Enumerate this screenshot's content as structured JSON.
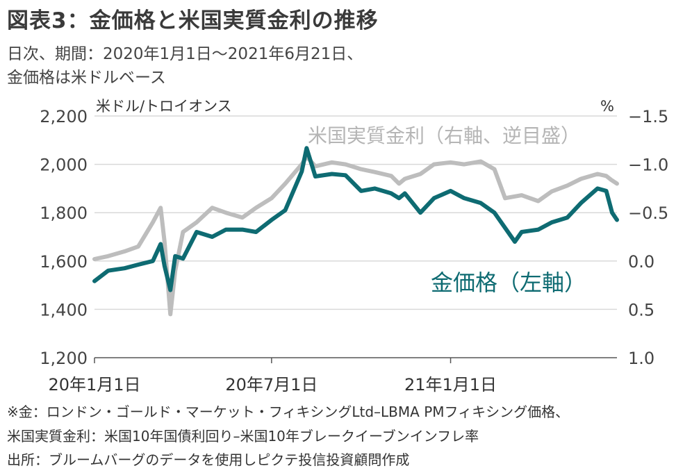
{
  "title": "図表3：金価格と米国実質金利の推移",
  "subtitle_line1": "日次、期間：2020年1月1日～2021年6月21日、",
  "subtitle_line2": "金価格は米ドルベース",
  "notes": [
    "※金：ロンドン・ゴールド・マーケット・フィキシングLtd–LBMA PMフィキシング価格、",
    "米国実質金利：米国10年国債利回り–米国10年ブレークイーブンインフレ率",
    "出所：ブルームバーグのデータを使用しピクテ投信投資顧問作成"
  ],
  "chart_data": {
    "type": "line",
    "x_tick_labels": [
      "20年1月1日",
      "20年7月1日",
      "21年1月1日"
    ],
    "x_tick_dates": [
      "2020-01-01",
      "2020-07-01",
      "2021-01-01"
    ],
    "x_range": [
      "2020-01-01",
      "2021-06-21"
    ],
    "left_axis": {
      "unit": "米ドル/トロイオンス",
      "ticks": [
        "2,200",
        "2,000",
        "1,800",
        "1,600",
        "1,400",
        "1,200"
      ],
      "ylim": [
        1200,
        2200
      ]
    },
    "right_axis": {
      "unit": "%",
      "ticks": [
        "-1.5",
        "-1.0",
        "-0.5",
        "0.0",
        "0.5",
        "1.0"
      ],
      "ylim": [
        1.0,
        -1.5
      ],
      "inverted": true
    },
    "grid": true,
    "series": [
      {
        "name": "米国実質金利（右軸、逆目盛）",
        "axis": "right",
        "color": "#bdbdbd",
        "x": [
          "2020-01-01",
          "2020-01-15",
          "2020-02-01",
          "2020-02-15",
          "2020-03-01",
          "2020-03-09",
          "2020-03-13",
          "2020-03-19",
          "2020-03-24",
          "2020-04-01",
          "2020-04-15",
          "2020-05-01",
          "2020-05-15",
          "2020-06-01",
          "2020-06-15",
          "2020-07-01",
          "2020-07-15",
          "2020-08-01",
          "2020-08-06",
          "2020-08-15",
          "2020-09-01",
          "2020-09-15",
          "2020-10-01",
          "2020-10-15",
          "2020-11-01",
          "2020-11-09",
          "2020-11-15",
          "2020-12-01",
          "2020-12-15",
          "2021-01-01",
          "2021-01-15",
          "2021-02-01",
          "2021-02-15",
          "2021-02-26",
          "2021-03-15",
          "2021-04-01",
          "2021-04-15",
          "2021-05-01",
          "2021-05-15",
          "2021-06-01",
          "2021-06-10",
          "2021-06-15",
          "2021-06-21"
        ],
        "values": [
          -0.02,
          -0.05,
          -0.1,
          -0.15,
          -0.4,
          -0.55,
          -0.2,
          0.55,
          0.1,
          -0.3,
          -0.4,
          -0.55,
          -0.5,
          -0.45,
          -0.55,
          -0.65,
          -0.8,
          -1.0,
          -1.08,
          -0.98,
          -1.02,
          -1.0,
          -0.95,
          -0.92,
          -0.88,
          -0.8,
          -0.85,
          -0.9,
          -1.0,
          -1.02,
          -1.0,
          -1.03,
          -0.95,
          -0.65,
          -0.68,
          -0.62,
          -0.72,
          -0.78,
          -0.85,
          -0.9,
          -0.88,
          -0.84,
          -0.8
        ]
      },
      {
        "name": "金価格（左軸）",
        "axis": "left",
        "color": "#0e6b72",
        "x": [
          "2020-01-01",
          "2020-01-15",
          "2020-02-01",
          "2020-02-15",
          "2020-03-01",
          "2020-03-09",
          "2020-03-13",
          "2020-03-19",
          "2020-03-24",
          "2020-04-01",
          "2020-04-15",
          "2020-05-01",
          "2020-05-15",
          "2020-06-01",
          "2020-06-15",
          "2020-07-01",
          "2020-07-15",
          "2020-08-01",
          "2020-08-06",
          "2020-08-15",
          "2020-09-01",
          "2020-09-15",
          "2020-10-01",
          "2020-10-15",
          "2020-11-01",
          "2020-11-09",
          "2020-11-15",
          "2020-12-01",
          "2020-12-15",
          "2021-01-01",
          "2021-01-15",
          "2021-02-01",
          "2021-02-15",
          "2021-03-08",
          "2021-03-15",
          "2021-04-01",
          "2021-04-15",
          "2021-05-01",
          "2021-05-15",
          "2021-06-01",
          "2021-06-10",
          "2021-06-16",
          "2021-06-21"
        ],
        "values": [
          1517,
          1560,
          1570,
          1585,
          1600,
          1670,
          1580,
          1480,
          1620,
          1610,
          1720,
          1700,
          1730,
          1730,
          1720,
          1770,
          1810,
          1970,
          2067,
          1950,
          1960,
          1955,
          1890,
          1900,
          1880,
          1860,
          1880,
          1800,
          1860,
          1890,
          1860,
          1840,
          1800,
          1680,
          1720,
          1730,
          1760,
          1780,
          1840,
          1900,
          1890,
          1800,
          1770
        ]
      }
    ]
  }
}
